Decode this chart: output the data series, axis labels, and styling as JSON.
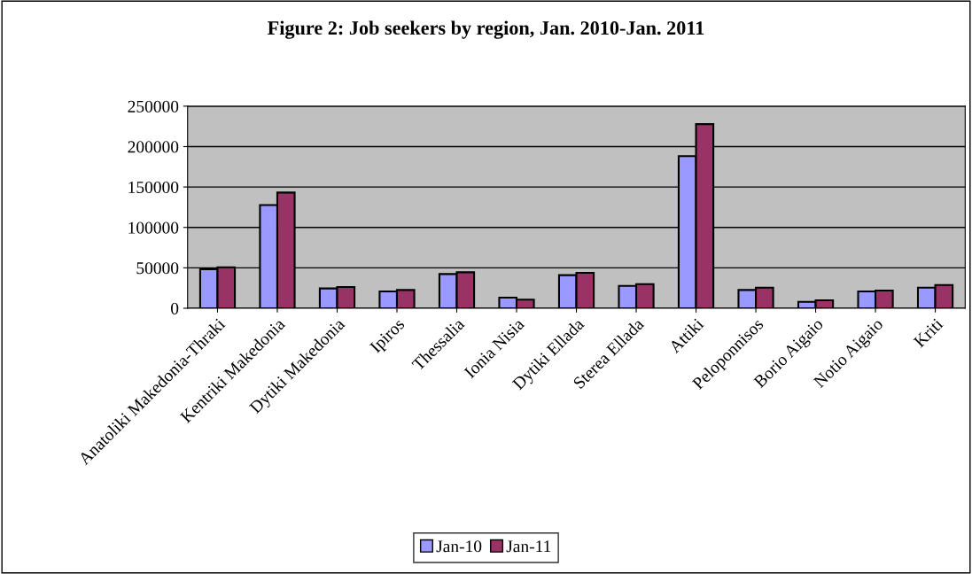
{
  "chart_data": {
    "type": "bar",
    "title": "Figure 2: Job seekers by region, Jan. 2010-Jan. 2011",
    "categories": [
      "Anatoliki Makedonia-Thraki",
      "Kentriki Makedonia",
      "Dytiki Makedonia",
      "Ipiros",
      "Thessalia",
      "Ionia Nisia",
      "Dytiki Ellada",
      "Sterea Ellada",
      "Attiki",
      "Peloponnisos",
      "Borio Aigaio",
      "Notio Aigaio",
      "Kriti"
    ],
    "series": [
      {
        "name": "Jan-10",
        "color": "#9999ff",
        "values": [
          48200,
          127700,
          24500,
          20800,
          42300,
          13100,
          40900,
          27700,
          188300,
          22600,
          8000,
          20800,
          25500
        ]
      },
      {
        "name": "Jan-11",
        "color": "#993366",
        "values": [
          50700,
          143100,
          26300,
          22600,
          44500,
          10600,
          43800,
          29900,
          227800,
          25500,
          9900,
          21900,
          28800
        ]
      }
    ],
    "ylim": [
      0,
      250000
    ],
    "yticks": [
      0,
      50000,
      100000,
      150000,
      200000,
      250000
    ],
    "grid": "y",
    "legend": "bottom"
  }
}
